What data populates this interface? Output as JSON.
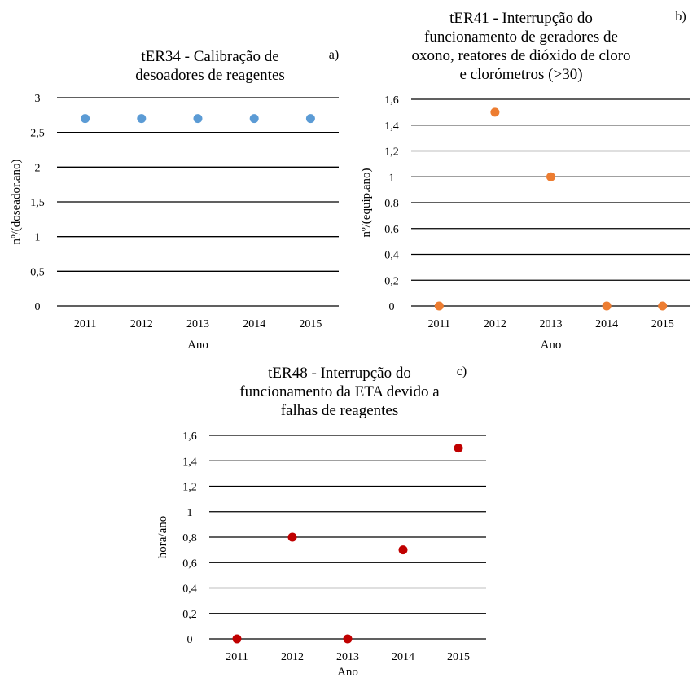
{
  "chart_data": [
    {
      "id": "a",
      "type": "scatter",
      "panel_label": "a)",
      "title": [
        "tER34 - Calibração de",
        "desoadores de reagentes"
      ],
      "xlabel": "Ano",
      "ylabel": "nº/(doseador.ano)",
      "categories": [
        "2011",
        "2012",
        "2013",
        "2014",
        "2015"
      ],
      "yticks": [
        "0",
        "0,5",
        "1",
        "1,5",
        "2",
        "2,5",
        "3"
      ],
      "ylim": [
        0,
        3
      ],
      "grid": true,
      "series": [
        {
          "values": [
            2.7,
            2.7,
            2.7,
            2.7,
            2.7
          ],
          "color": "#5b9bd5"
        }
      ]
    },
    {
      "id": "b",
      "type": "scatter",
      "panel_label": "b)",
      "title": [
        "tER41 - Interrupção do",
        "funcionamento de geradores de",
        "oxono, reatores de dióxido de cloro",
        "e clorómetros (>30)"
      ],
      "xlabel": "Ano",
      "ylabel": "nº/(equip.ano)",
      "categories": [
        "2011",
        "2012",
        "2013",
        "2014",
        "2015"
      ],
      "yticks": [
        "0",
        "0,2",
        "0,4",
        "0,6",
        "0,8",
        "1",
        "1,2",
        "1,4",
        "1,6"
      ],
      "ylim": [
        0,
        1.6
      ],
      "grid": true,
      "series": [
        {
          "values": [
            0,
            1.5,
            1,
            0,
            0
          ],
          "color": "#ed7d31"
        }
      ]
    },
    {
      "id": "c",
      "type": "scatter",
      "panel_label": "c)",
      "title": [
        "tER48 - Interrupção do",
        "funcionamento da ETA devido a",
        "falhas de reagentes"
      ],
      "xlabel": "Ano",
      "ylabel": "hora/ano",
      "categories": [
        "2011",
        "2012",
        "2013",
        "2014",
        "2015"
      ],
      "yticks": [
        "0",
        "0,2",
        "0,4",
        "0,6",
        "0,8",
        "1",
        "1,2",
        "1,4",
        "1,6"
      ],
      "ylim": [
        0,
        1.6
      ],
      "grid": true,
      "series": [
        {
          "values": [
            0,
            0.8,
            0,
            0.7,
            1.5
          ],
          "color": "#c00000"
        }
      ]
    }
  ]
}
